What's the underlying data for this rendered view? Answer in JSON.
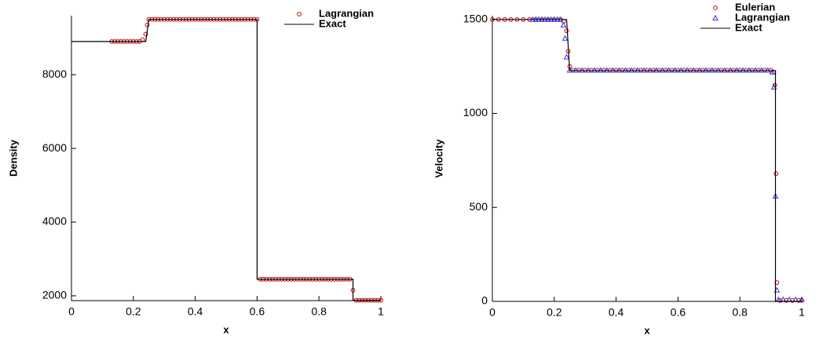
{
  "chart_data": [
    {
      "type": "scatter",
      "xlabel": "x",
      "ylabel": "Density",
      "xlim": [
        0,
        1
      ],
      "ylim": [
        1870,
        9600
      ],
      "xticks": [
        0,
        0.2,
        0.4,
        0.6,
        0.8,
        1
      ],
      "yticks": [
        2000,
        4000,
        6000,
        8000
      ],
      "series": [
        {
          "name": "Lagrangian",
          "marker": "circle",
          "color": "#cc0000",
          "x": [
            0.13,
            0.14,
            0.15,
            0.16,
            0.17,
            0.18,
            0.19,
            0.2,
            0.21,
            0.22,
            0.23,
            0.24,
            0.245,
            0.25,
            0.26,
            0.27,
            0.28,
            0.29,
            0.3,
            0.31,
            0.32,
            0.33,
            0.34,
            0.35,
            0.36,
            0.37,
            0.38,
            0.39,
            0.4,
            0.41,
            0.42,
            0.43,
            0.44,
            0.45,
            0.46,
            0.47,
            0.48,
            0.49,
            0.5,
            0.51,
            0.52,
            0.53,
            0.54,
            0.55,
            0.56,
            0.57,
            0.58,
            0.59,
            0.6,
            0.61,
            0.62,
            0.63,
            0.64,
            0.65,
            0.66,
            0.67,
            0.68,
            0.69,
            0.7,
            0.71,
            0.72,
            0.73,
            0.74,
            0.75,
            0.76,
            0.77,
            0.78,
            0.79,
            0.8,
            0.81,
            0.82,
            0.83,
            0.84,
            0.85,
            0.86,
            0.87,
            0.88,
            0.89,
            0.9,
            0.91,
            0.92,
            0.93,
            0.94,
            0.95,
            0.96,
            0.97,
            0.98,
            0.99,
            1
          ],
          "values": [
            8900,
            8900,
            8900,
            8900,
            8900,
            8900,
            8900,
            8900,
            8900,
            8900,
            8950,
            9100,
            9350,
            9500,
            9500,
            9500,
            9500,
            9500,
            9500,
            9500,
            9500,
            9500,
            9500,
            9500,
            9500,
            9500,
            9500,
            9500,
            9500,
            9500,
            9500,
            9500,
            9500,
            9500,
            9500,
            9500,
            9500,
            9500,
            9500,
            9500,
            9500,
            9500,
            9500,
            9500,
            9500,
            9500,
            9500,
            9500,
            9500,
            2450,
            2450,
            2450,
            2450,
            2450,
            2450,
            2450,
            2450,
            2450,
            2450,
            2450,
            2450,
            2450,
            2450,
            2450,
            2450,
            2450,
            2450,
            2450,
            2450,
            2450,
            2450,
            2450,
            2450,
            2450,
            2450,
            2450,
            2450,
            2450,
            2450,
            2150,
            1880,
            1880,
            1880,
            1880,
            1880,
            1880,
            1880,
            1880,
            1880
          ]
        },
        {
          "name": "Exact",
          "marker": "line",
          "color": "#000000",
          "x": [
            0,
            0.24,
            0.25,
            0.6,
            0.6,
            0.91,
            0.91,
            1
          ],
          "values": [
            8900,
            8900,
            9500,
            9500,
            2450,
            2450,
            1880,
            1880
          ]
        }
      ]
    },
    {
      "type": "scatter",
      "xlabel": "x",
      "ylabel": "Velocity",
      "xlim": [
        0,
        1
      ],
      "ylim": [
        0,
        1520
      ],
      "xticks": [
        0,
        0.2,
        0.4,
        0.6,
        0.8,
        1
      ],
      "yticks": [
        0,
        500,
        1000,
        1500
      ],
      "series": [
        {
          "name": "Eulerian",
          "marker": "circle",
          "color": "#cc0000",
          "x": [
            0,
            0.02,
            0.04,
            0.06,
            0.08,
            0.1,
            0.12,
            0.14,
            0.16,
            0.18,
            0.2,
            0.22,
            0.23,
            0.24,
            0.245,
            0.25,
            0.26,
            0.28,
            0.3,
            0.32,
            0.34,
            0.36,
            0.38,
            0.4,
            0.42,
            0.44,
            0.46,
            0.48,
            0.5,
            0.52,
            0.54,
            0.56,
            0.58,
            0.6,
            0.62,
            0.64,
            0.66,
            0.68,
            0.7,
            0.72,
            0.74,
            0.76,
            0.78,
            0.8,
            0.82,
            0.84,
            0.86,
            0.88,
            0.9,
            0.91,
            0.913,
            0.917,
            0.92,
            0.93,
            0.95,
            0.97,
            0.99,
            1
          ],
          "values": [
            1500,
            1500,
            1500,
            1500,
            1500,
            1500,
            1500,
            1500,
            1500,
            1500,
            1500,
            1500,
            1490,
            1440,
            1330,
            1250,
            1230,
            1230,
            1230,
            1230,
            1230,
            1230,
            1230,
            1230,
            1230,
            1230,
            1230,
            1230,
            1230,
            1230,
            1230,
            1230,
            1230,
            1230,
            1230,
            1230,
            1230,
            1230,
            1230,
            1230,
            1230,
            1230,
            1230,
            1230,
            1230,
            1230,
            1230,
            1230,
            1230,
            1220,
            1150,
            680,
            100,
            5,
            5,
            5,
            5,
            5
          ]
        },
        {
          "name": "Lagrangian",
          "marker": "triangle",
          "color": "#3333ee",
          "x": [
            0.13,
            0.14,
            0.15,
            0.16,
            0.17,
            0.18,
            0.19,
            0.2,
            0.21,
            0.22,
            0.23,
            0.235,
            0.24,
            0.25,
            0.27,
            0.29,
            0.31,
            0.33,
            0.35,
            0.37,
            0.39,
            0.41,
            0.43,
            0.45,
            0.47,
            0.49,
            0.51,
            0.53,
            0.55,
            0.57,
            0.59,
            0.61,
            0.63,
            0.65,
            0.67,
            0.69,
            0.71,
            0.73,
            0.75,
            0.77,
            0.79,
            0.81,
            0.83,
            0.85,
            0.87,
            0.89,
            0.905,
            0.91,
            0.915,
            0.92,
            0.925,
            0.94,
            0.96,
            0.98,
            1
          ],
          "values": [
            1500,
            1500,
            1500,
            1500,
            1500,
            1500,
            1500,
            1500,
            1500,
            1500,
            1470,
            1400,
            1300,
            1230,
            1230,
            1230,
            1230,
            1230,
            1230,
            1230,
            1230,
            1230,
            1230,
            1230,
            1230,
            1230,
            1230,
            1230,
            1230,
            1230,
            1230,
            1230,
            1230,
            1230,
            1230,
            1230,
            1230,
            1230,
            1230,
            1230,
            1230,
            1230,
            1230,
            1230,
            1230,
            1230,
            1220,
            1140,
            560,
            60,
            10,
            10,
            10,
            10,
            10
          ]
        },
        {
          "name": "Exact",
          "marker": "line",
          "color": "#000000",
          "x": [
            0,
            0.24,
            0.25,
            0.915,
            0.915,
            1
          ],
          "values": [
            1500,
            1500,
            1228,
            1228,
            0,
            0
          ]
        }
      ]
    }
  ]
}
